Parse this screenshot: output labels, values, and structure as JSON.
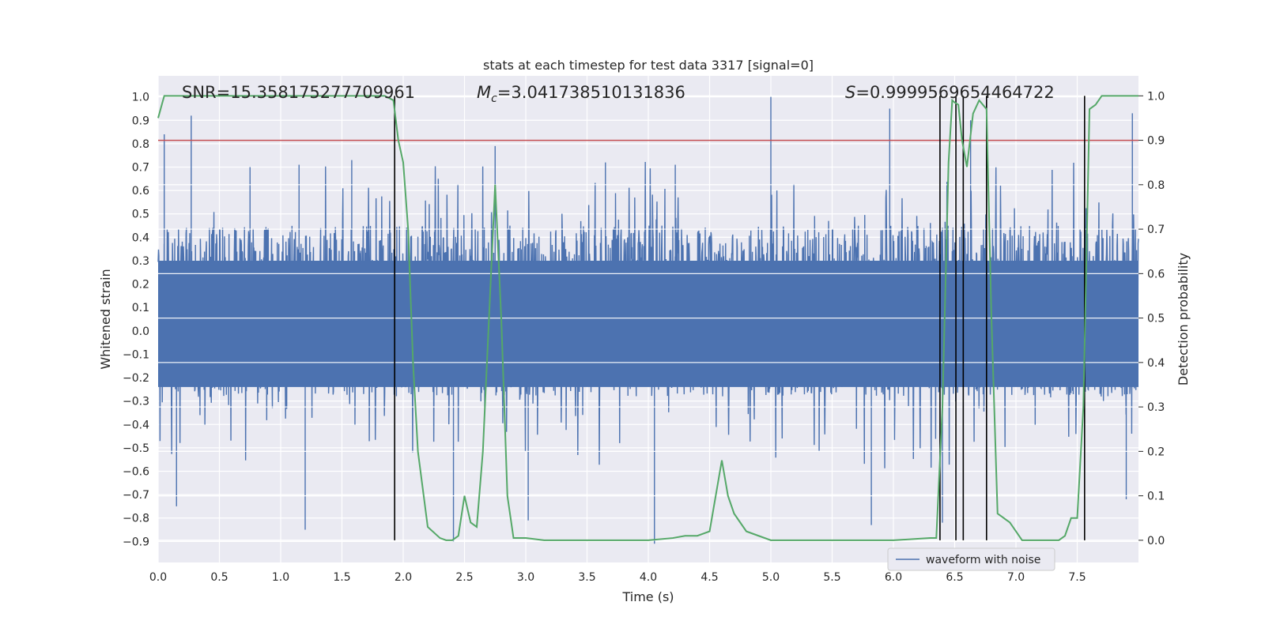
{
  "chart_data": {
    "type": "line",
    "title": "stats at each timestep for test data 3317 [signal=0]",
    "xlabel": "Time (s)",
    "ylabel_left": "Whitened strain",
    "ylabel_right": "Detection probability",
    "xlim": [
      0.0,
      8.0
    ],
    "ylim_left": [
      -0.99,
      1.09
    ],
    "ylim_right": [
      -0.05,
      1.045
    ],
    "x_ticks": [
      0.0,
      0.5,
      1.0,
      1.5,
      2.0,
      2.5,
      3.0,
      3.5,
      4.0,
      4.5,
      5.0,
      5.5,
      6.0,
      6.5,
      7.0,
      7.5
    ],
    "x_tick_labels": [
      "0.0",
      "0.5",
      "1.0",
      "1.5",
      "2.0",
      "2.5",
      "3.0",
      "3.5",
      "4.0",
      "4.5",
      "5.0",
      "5.5",
      "6.0",
      "6.5",
      "7.0",
      "7.5"
    ],
    "y_ticks_left": [
      -0.9,
      -0.8,
      -0.7,
      -0.6,
      -0.5,
      -0.4,
      -0.3,
      -0.2,
      -0.1,
      0.0,
      0.1,
      0.2,
      0.3,
      0.4,
      0.5,
      0.6,
      0.7,
      0.8,
      0.9,
      1.0
    ],
    "y_tick_labels_left": [
      "−0.9",
      "−0.8",
      "−0.7",
      "−0.6",
      "−0.5",
      "−0.4",
      "−0.3",
      "−0.2",
      "−0.1",
      "0.0",
      "0.1",
      "0.2",
      "0.3",
      "0.4",
      "0.5",
      "0.6",
      "0.7",
      "0.8",
      "0.9",
      "1.0"
    ],
    "y_ticks_right": [
      0.0,
      0.1,
      0.2,
      0.3,
      0.4,
      0.5,
      0.6,
      0.7,
      0.8,
      0.9,
      1.0
    ],
    "y_tick_labels_right": [
      "0.0",
      "0.1",
      "0.2",
      "0.3",
      "0.4",
      "0.5",
      "0.6",
      "0.7",
      "0.8",
      "0.9",
      "1.0"
    ],
    "annotations": {
      "snr": "SNR=15.358175277709961",
      "mc_symbol": "M",
      "mc_sub": "c",
      "mc_value": "=3.041738510131836",
      "s_symbol": "S",
      "s_value": "=0.9999569654464722"
    },
    "legend": [
      {
        "label": "waveform with noise",
        "color": "#4c72b0"
      }
    ],
    "threshold": {
      "y_right": 0.9,
      "color": "#c44e52"
    },
    "detection_times": [
      1.93,
      6.38,
      6.51,
      6.57,
      6.76,
      7.56
    ],
    "series": [
      {
        "name": "detection probability",
        "axis": "right",
        "color": "#55a868",
        "x": [
          0.0,
          0.05,
          0.1,
          0.3,
          1.5,
          1.85,
          1.92,
          1.96,
          2.0,
          2.04,
          2.08,
          2.12,
          2.2,
          2.3,
          2.35,
          2.4,
          2.45,
          2.5,
          2.55,
          2.6,
          2.65,
          2.7,
          2.75,
          2.8,
          2.85,
          2.9,
          3.0,
          3.15,
          3.5,
          4.0,
          4.2,
          4.3,
          4.4,
          4.5,
          4.55,
          4.6,
          4.65,
          4.7,
          4.8,
          4.9,
          5.0,
          5.2,
          5.5,
          6.0,
          6.3,
          6.35,
          6.4,
          6.45,
          6.48,
          6.5,
          6.53,
          6.56,
          6.6,
          6.65,
          6.7,
          6.73,
          6.76,
          6.8,
          6.85,
          6.9,
          6.95,
          7.0,
          7.05,
          7.1,
          7.2,
          7.3,
          7.35,
          7.4,
          7.45,
          7.5,
          7.55,
          7.6,
          7.65,
          7.7,
          7.8,
          8.0
        ],
        "y": [
          0.95,
          1.0,
          1.0,
          1.0,
          1.0,
          1.0,
          0.99,
          0.9,
          0.85,
          0.7,
          0.4,
          0.2,
          0.03,
          0.005,
          0.0,
          0.0,
          0.01,
          0.1,
          0.04,
          0.03,
          0.2,
          0.5,
          0.8,
          0.5,
          0.1,
          0.005,
          0.005,
          0.0,
          0.0,
          0.0,
          0.005,
          0.01,
          0.01,
          0.02,
          0.1,
          0.18,
          0.1,
          0.06,
          0.02,
          0.01,
          0.0,
          0.0,
          0.0,
          0.0,
          0.005,
          0.005,
          0.3,
          0.85,
          0.99,
          0.985,
          0.98,
          0.9,
          0.84,
          0.96,
          0.99,
          0.98,
          0.97,
          0.5,
          0.06,
          0.05,
          0.04,
          0.02,
          0.0,
          0.0,
          0.0,
          0.0,
          0.0,
          0.01,
          0.05,
          0.05,
          0.3,
          0.97,
          0.98,
          1.0,
          1.0,
          1.0
        ]
      }
    ],
    "waveform": {
      "name": "waveform with noise",
      "axis": "left",
      "color": "#4c72b0",
      "x_range": [
        0.0,
        8.0
      ],
      "envelope": [
        -0.28,
        0.45
      ],
      "spikes": [
        {
          "x": 0.05,
          "y": 0.84
        },
        {
          "x": 0.27,
          "y": 0.92
        },
        {
          "x": 0.75,
          "y": 0.7
        },
        {
          "x": 1.15,
          "y": 0.71
        },
        {
          "x": 1.58,
          "y": 0.73
        },
        {
          "x": 2.75,
          "y": 0.79
        },
        {
          "x": 3.65,
          "y": 0.72
        },
        {
          "x": 4.22,
          "y": 0.71
        },
        {
          "x": 5.0,
          "y": 1.0
        },
        {
          "x": 5.97,
          "y": 0.95
        },
        {
          "x": 6.63,
          "y": 0.9
        },
        {
          "x": 7.95,
          "y": 0.93
        },
        {
          "x": 0.15,
          "y": -0.75
        },
        {
          "x": 1.2,
          "y": -0.85
        },
        {
          "x": 2.41,
          "y": -0.9
        },
        {
          "x": 3.02,
          "y": -0.81
        },
        {
          "x": 4.05,
          "y": -0.91
        },
        {
          "x": 5.82,
          "y": -0.83
        },
        {
          "x": 6.4,
          "y": -0.82
        },
        {
          "x": 7.9,
          "y": -0.72
        }
      ]
    }
  }
}
